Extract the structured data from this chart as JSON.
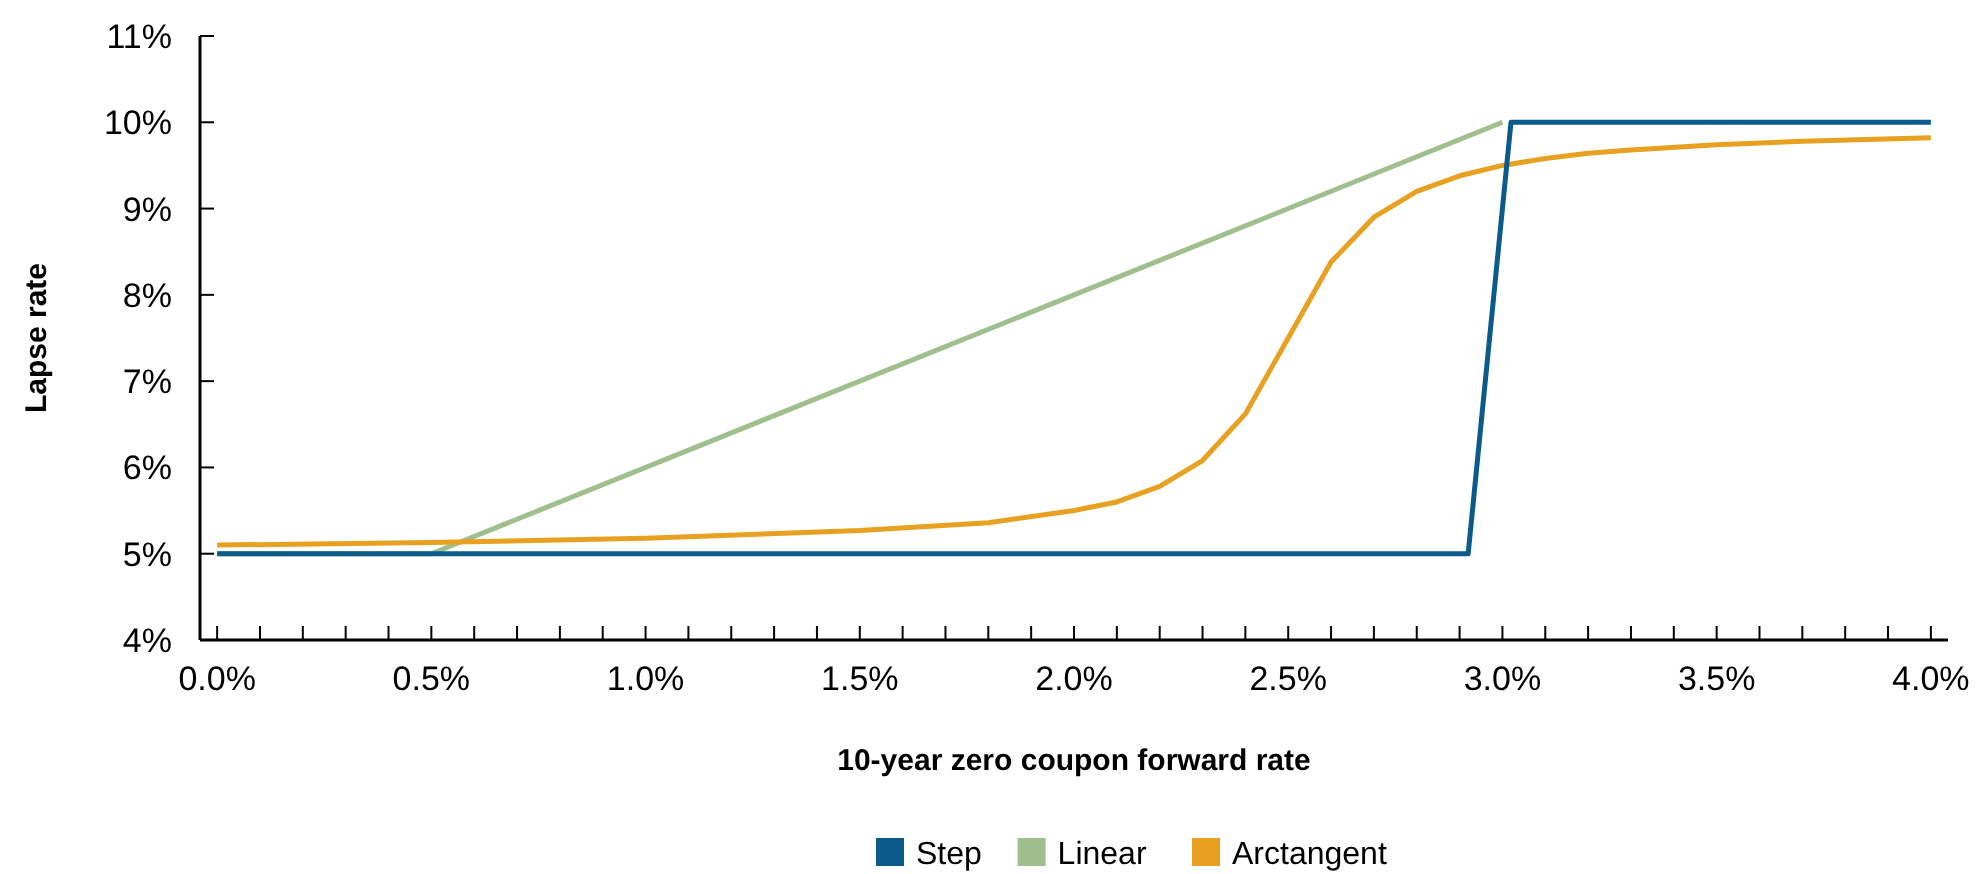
{
  "chart_data": {
    "type": "line",
    "xlabel": "10-year zero coupon forward rate",
    "ylabel": "Lapse rate",
    "xlim": [
      -0.04,
      4.04
    ],
    "ylim": [
      4,
      11
    ],
    "xticks": [
      {
        "value": 0,
        "label": "0.0%"
      },
      {
        "value": 0.1,
        "label": null
      },
      {
        "value": 0.2,
        "label": null
      },
      {
        "value": 0.3,
        "label": null
      },
      {
        "value": 0.4,
        "label": null
      },
      {
        "value": 0.5,
        "label": "0.5%"
      },
      {
        "value": 0.6,
        "label": null
      },
      {
        "value": 0.7,
        "label": null
      },
      {
        "value": 0.8,
        "label": null
      },
      {
        "value": 0.9,
        "label": null
      },
      {
        "value": 1,
        "label": "1.0%"
      },
      {
        "value": 1.1,
        "label": null
      },
      {
        "value": 1.2,
        "label": null
      },
      {
        "value": 1.3,
        "label": null
      },
      {
        "value": 1.4,
        "label": null
      },
      {
        "value": 1.5,
        "label": "1.5%"
      },
      {
        "value": 1.6,
        "label": null
      },
      {
        "value": 1.7,
        "label": null
      },
      {
        "value": 1.8,
        "label": null
      },
      {
        "value": 1.9,
        "label": null
      },
      {
        "value": 2,
        "label": "2.0%"
      },
      {
        "value": 2.1,
        "label": null
      },
      {
        "value": 2.2,
        "label": null
      },
      {
        "value": 2.3,
        "label": null
      },
      {
        "value": 2.4,
        "label": null
      },
      {
        "value": 2.5,
        "label": "2.5%"
      },
      {
        "value": 2.6,
        "label": null
      },
      {
        "value": 2.7,
        "label": null
      },
      {
        "value": 2.8,
        "label": null
      },
      {
        "value": 2.9,
        "label": null
      },
      {
        "value": 3,
        "label": "3.0%"
      },
      {
        "value": 3.1,
        "label": null
      },
      {
        "value": 3.2,
        "label": null
      },
      {
        "value": 3.3,
        "label": null
      },
      {
        "value": 3.4,
        "label": null
      },
      {
        "value": 3.5,
        "label": "3.5%"
      },
      {
        "value": 3.6,
        "label": null
      },
      {
        "value": 3.7,
        "label": null
      },
      {
        "value": 3.8,
        "label": null
      },
      {
        "value": 3.9,
        "label": null
      },
      {
        "value": 4,
        "label": "4.0%"
      }
    ],
    "yticks": [
      {
        "value": 4,
        "label": "4%"
      },
      {
        "value": 5,
        "label": "5%"
      },
      {
        "value": 6,
        "label": "6%"
      },
      {
        "value": 7,
        "label": "7%"
      },
      {
        "value": 8,
        "label": "8%"
      },
      {
        "value": 9,
        "label": "9%"
      },
      {
        "value": 10,
        "label": "10%"
      },
      {
        "value": 11,
        "label": "11%"
      }
    ],
    "grid": false,
    "legend": "bottom",
    "marker": "none",
    "line_style": "solid",
    "series": [
      {
        "name": "Step",
        "color": "#0b5a8c",
        "x": [
          0,
          2.92,
          3.02,
          4
        ],
        "values": [
          5,
          5,
          10,
          10
        ]
      },
      {
        "name": "Linear",
        "color": "#9fbf8f",
        "x": [
          0,
          0.5,
          3
        ],
        "values": [
          5,
          5,
          10
        ]
      },
      {
        "name": "Arctangent",
        "color": "#e8a020",
        "x": [
          0,
          0.5,
          1,
          1.5,
          1.8,
          2,
          2.1,
          2.2,
          2.3,
          2.4,
          2.5,
          2.6,
          2.7,
          2.8,
          2.9,
          3,
          3.1,
          3.2,
          3.3,
          3.5,
          3.7,
          4
        ],
        "values": [
          5.1,
          5.13,
          5.18,
          5.27,
          5.36,
          5.5,
          5.6,
          5.78,
          6.08,
          6.62,
          7.5,
          8.38,
          8.9,
          9.2,
          9.38,
          9.5,
          9.58,
          9.64,
          9.68,
          9.74,
          9.78,
          9.82
        ]
      }
    ]
  }
}
